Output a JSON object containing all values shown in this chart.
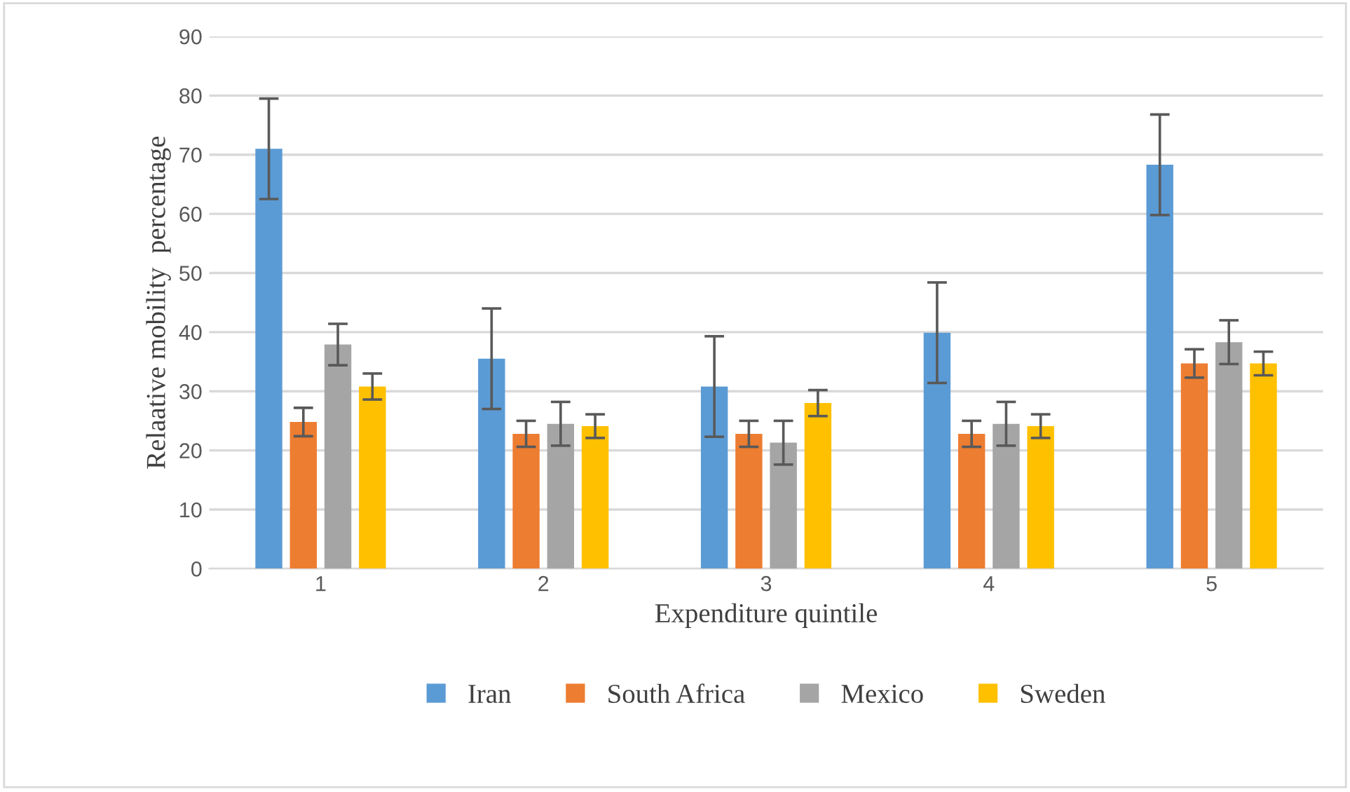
{
  "chart_data": {
    "type": "bar",
    "xlabel": "Expenditure quintile",
    "ylabel": "Relaative mobility  percentage",
    "categories": [
      "1",
      "2",
      "3",
      "4",
      "5"
    ],
    "series": [
      {
        "name": "Iran",
        "color": "#5b9bd5",
        "values": [
          71.0,
          35.5,
          30.8,
          39.9,
          68.3
        ],
        "errors": [
          8.5,
          8.5,
          8.5,
          8.5,
          8.5
        ]
      },
      {
        "name": "South Africa",
        "color": "#ed7d31",
        "values": [
          24.8,
          22.8,
          22.8,
          22.8,
          34.7
        ],
        "errors": [
          2.4,
          2.2,
          2.2,
          2.2,
          2.4
        ]
      },
      {
        "name": "Mexico",
        "color": "#a5a5a5",
        "values": [
          37.9,
          24.5,
          21.3,
          24.5,
          38.3
        ],
        "errors": [
          3.5,
          3.7,
          3.7,
          3.7,
          3.7
        ]
      },
      {
        "name": "Sweden",
        "color": "#ffc000",
        "values": [
          30.8,
          24.1,
          28.0,
          24.1,
          34.7
        ],
        "errors": [
          2.2,
          2.0,
          2.2,
          2.0,
          2.0
        ]
      }
    ],
    "ylim": [
      0,
      90
    ],
    "yticks": [
      0,
      10,
      20,
      30,
      40,
      50,
      60,
      70,
      80,
      90
    ],
    "grid": "y",
    "legend": "bottom"
  }
}
